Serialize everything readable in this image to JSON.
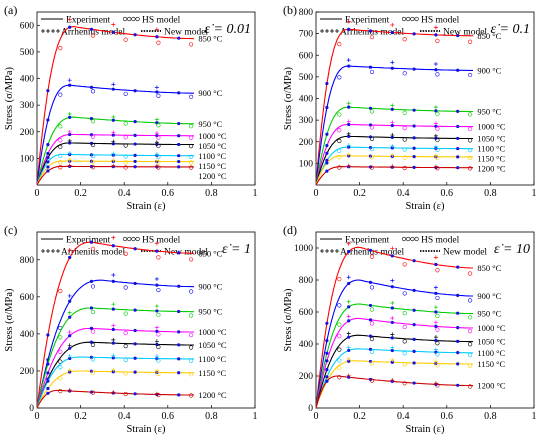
{
  "figure": {
    "legend": {
      "experiment": "Experiment",
      "hs": "HS model",
      "arrhenius": "Arrhenius model",
      "new_model": "New model"
    },
    "colors": {
      "850": "#ff0000",
      "900": "#0000ff",
      "950": "#00cc00",
      "1000": "#ff00ff",
      "1050": "#000000",
      "1100": "#00ccff",
      "1150": "#ffcc00",
      "1200": "#cc0000",
      "points": "#1010e0"
    }
  },
  "chart_data": [
    {
      "type": "line",
      "panel": "(a)",
      "rate_label": "ε̇ = 0.01",
      "xlabel": "Strain (ε)",
      "ylabel": "Stress (σ/MPa)",
      "xlim": [
        0,
        1
      ],
      "ylim": [
        0,
        650
      ],
      "xticks": [
        0,
        0.2,
        0.4,
        0.6,
        0.8,
        1
      ],
      "yticks": [
        100,
        200,
        300,
        400,
        500,
        600
      ],
      "series": [
        {
          "name": "850 °C",
          "peak": 595,
          "peak_strain": 0.17,
          "end": 550
        },
        {
          "name": "900 °C",
          "peak": 375,
          "peak_strain": 0.15,
          "end": 345
        },
        {
          "name": "950 °C",
          "peak": 255,
          "peak_strain": 0.17,
          "end": 230
        },
        {
          "name": "1000 °C",
          "peak": 190,
          "peak_strain": 0.16,
          "end": 185
        },
        {
          "name": "1050 °C",
          "peak": 158,
          "peak_strain": 0.15,
          "end": 152
        },
        {
          "name": "1100 °C",
          "peak": 115,
          "peak_strain": 0.12,
          "end": 110
        },
        {
          "name": "1150 °C",
          "peak": 90,
          "peak_strain": 0.12,
          "end": 88
        },
        {
          "name": "1200 °C",
          "peak": 70,
          "peak_strain": 0.12,
          "end": 68
        }
      ]
    },
    {
      "type": "line",
      "panel": "(b)",
      "rate_label": "ε̇ = 0.1",
      "xlabel": "Strain (ε)",
      "ylabel": "Stress (σ/MPa)",
      "xlim": [
        0,
        1
      ],
      "ylim": [
        0,
        800
      ],
      "xticks": [
        0,
        0.2,
        0.4,
        0.6,
        0.8,
        1
      ],
      "yticks": [
        100,
        200,
        300,
        400,
        500,
        600,
        700,
        800
      ],
      "series": [
        {
          "name": "850 °C",
          "peak": 720,
          "peak_strain": 0.15,
          "end": 690
        },
        {
          "name": "900 °C",
          "peak": 550,
          "peak_strain": 0.15,
          "end": 530
        },
        {
          "name": "950 °C",
          "peak": 360,
          "peak_strain": 0.15,
          "end": 340
        },
        {
          "name": "1000 °C",
          "peak": 280,
          "peak_strain": 0.15,
          "end": 270
        },
        {
          "name": "1050 °C",
          "peak": 225,
          "peak_strain": 0.15,
          "end": 215
        },
        {
          "name": "1100 °C",
          "peak": 175,
          "peak_strain": 0.15,
          "end": 168
        },
        {
          "name": "1150 °C",
          "peak": 135,
          "peak_strain": 0.12,
          "end": 130
        },
        {
          "name": "1200 °C",
          "peak": 85,
          "peak_strain": 0.12,
          "end": 80
        }
      ]
    },
    {
      "type": "line",
      "panel": "(c)",
      "rate_label": "ε̇ = 1",
      "xlabel": "Strain (ε)",
      "ylabel": "Stress (σ/MPa)",
      "xlim": [
        0,
        1
      ],
      "ylim": [
        0,
        950
      ],
      "xticks": [
        0,
        0.2,
        0.4,
        0.6,
        0.8,
        1
      ],
      "yticks": [
        0,
        200,
        400,
        600,
        800
      ],
      "series": [
        {
          "name": "850 °C",
          "peak": 895,
          "peak_strain": 0.25,
          "end": 835
        },
        {
          "name": "900 °C",
          "peak": 690,
          "peak_strain": 0.3,
          "end": 655
        },
        {
          "name": "950 °C",
          "peak": 540,
          "peak_strain": 0.25,
          "end": 520
        },
        {
          "name": "1000 °C",
          "peak": 430,
          "peak_strain": 0.25,
          "end": 410
        },
        {
          "name": "1050 °C",
          "peak": 355,
          "peak_strain": 0.25,
          "end": 340
        },
        {
          "name": "1100 °C",
          "peak": 275,
          "peak_strain": 0.2,
          "end": 265
        },
        {
          "name": "1150 °C",
          "peak": 200,
          "peak_strain": 0.2,
          "end": 190
        },
        {
          "name": "1200 °C",
          "peak": 95,
          "peak_strain": 0.1,
          "end": 70
        }
      ]
    },
    {
      "type": "line",
      "panel": "(d)",
      "rate_label": "ε̇ = 10",
      "xlabel": "Strain (ε)",
      "ylabel": "Stress (σ/MPa)",
      "xlim": [
        0,
        1
      ],
      "ylim": [
        0,
        1100
      ],
      "xticks": [
        0,
        0.2,
        0.4,
        0.6,
        0.8,
        1
      ],
      "yticks": [
        0,
        200,
        400,
        600,
        800,
        1000
      ],
      "series": [
        {
          "name": "850 °C",
          "peak": 1005,
          "peak_strain": 0.2,
          "end": 875
        },
        {
          "name": "900 °C",
          "peak": 800,
          "peak_strain": 0.2,
          "end": 700
        },
        {
          "name": "950 °C",
          "peak": 650,
          "peak_strain": 0.2,
          "end": 590
        },
        {
          "name": "1000 °C",
          "peak": 560,
          "peak_strain": 0.2,
          "end": 500
        },
        {
          "name": "1050 °C",
          "peak": 455,
          "peak_strain": 0.2,
          "end": 415
        },
        {
          "name": "1100 °C",
          "peak": 370,
          "peak_strain": 0.2,
          "end": 345
        },
        {
          "name": "1150 °C",
          "peak": 295,
          "peak_strain": 0.18,
          "end": 275
        },
        {
          "name": "1200 °C",
          "peak": 200,
          "peak_strain": 0.1,
          "end": 140
        }
      ]
    }
  ]
}
